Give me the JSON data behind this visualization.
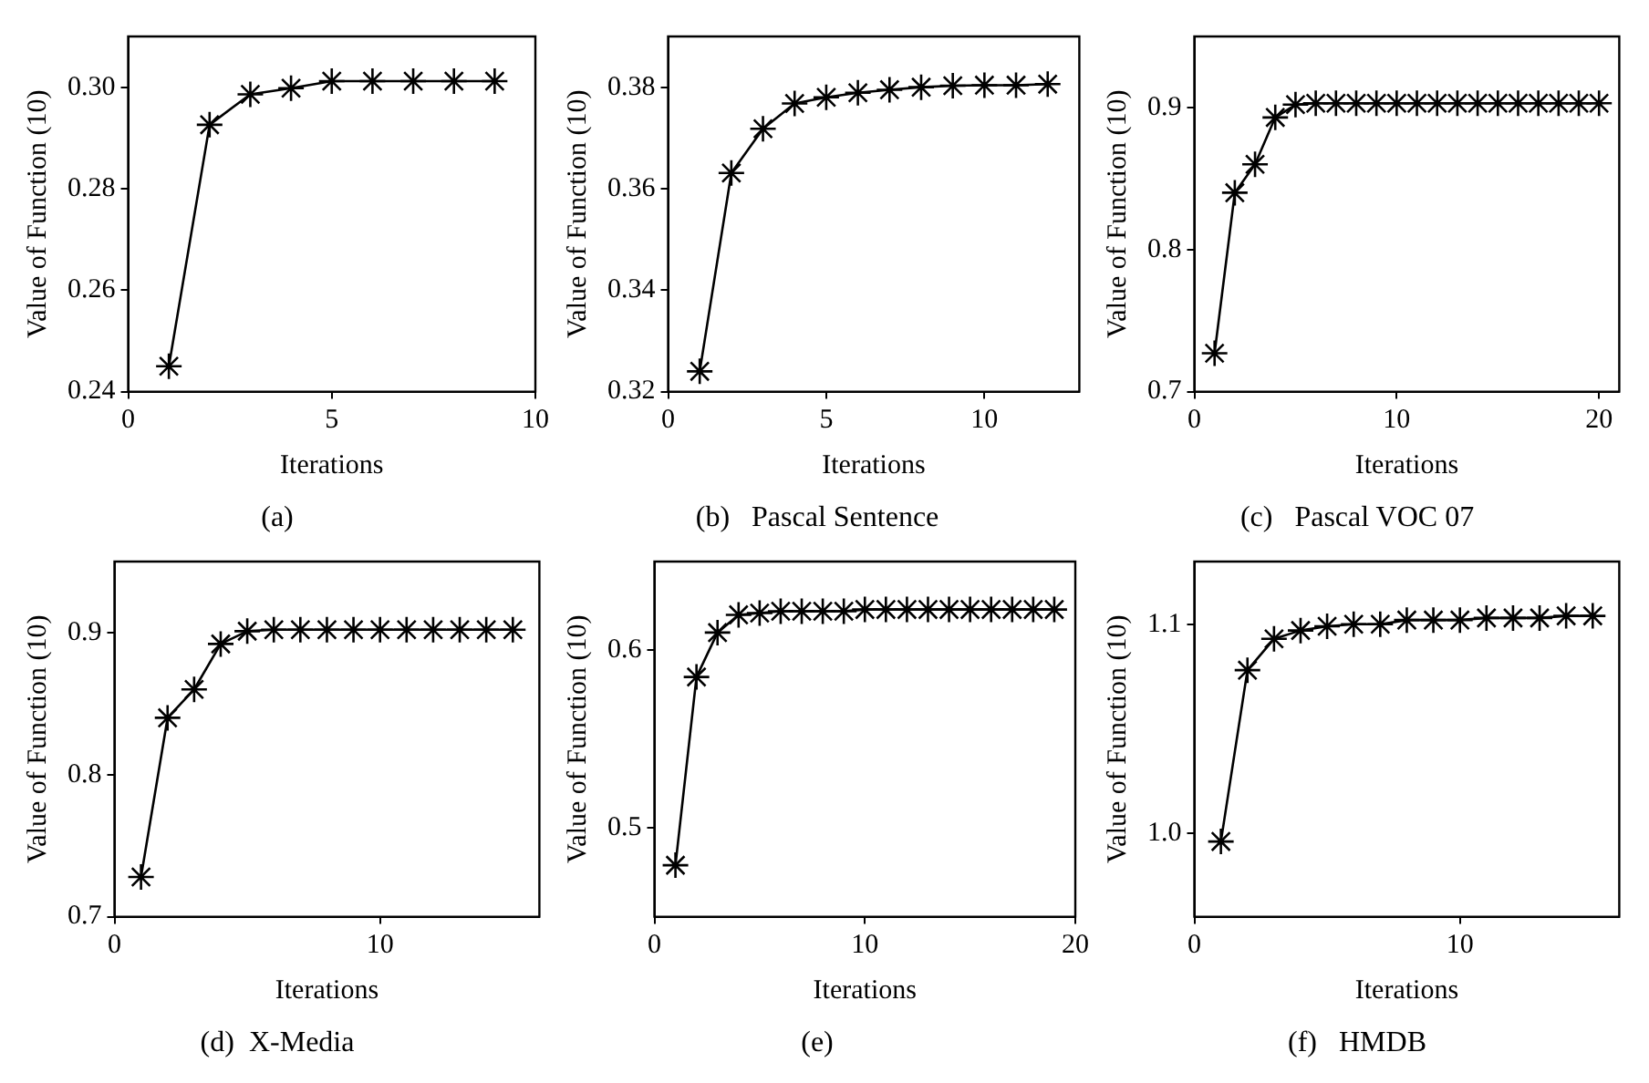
{
  "chart_data": [
    {
      "type": "line",
      "title": "(a)",
      "xlabel": "Iterations",
      "ylabel": "Value of Function (10)",
      "x": [
        1,
        2,
        3,
        4,
        5,
        6,
        7,
        8,
        9
      ],
      "values": [
        0.245,
        0.2926,
        0.2986,
        0.2998,
        0.3012,
        0.3012,
        0.3012,
        0.3012,
        0.3012
      ],
      "color": "#000000",
      "xlim": [
        0,
        10
      ],
      "xticks": [
        0,
        5,
        10
      ],
      "ylim": [
        0.24,
        0.31
      ],
      "yticks": [
        0.24,
        0.26,
        0.28,
        {
          "value": 0.3,
          "label": "0.30"
        }
      ],
      "marker": "cross",
      "grid": false,
      "legend": false
    },
    {
      "type": "line",
      "title": "(b)   Pascal Sentence",
      "xlabel": "Iterations",
      "ylabel": "Value of Function (10)",
      "x": [
        1,
        2,
        3,
        4,
        5,
        6,
        7,
        8,
        9,
        10,
        11,
        12
      ],
      "values": [
        0.324,
        0.3631,
        0.3718,
        0.3768,
        0.378,
        0.3789,
        0.3795,
        0.38,
        0.3803,
        0.3804,
        0.3804,
        0.3806
      ],
      "color": "#000000",
      "xlim": [
        0,
        13
      ],
      "xticks": [
        0,
        5,
        10
      ],
      "ylim": [
        0.32,
        0.39
      ],
      "yticks": [
        0.32,
        0.34,
        0.36,
        0.38
      ],
      "marker": "cross",
      "grid": false,
      "legend": false
    },
    {
      "type": "line",
      "title": "(c)   Pascal VOC 07",
      "xlabel": "Iterations",
      "ylabel": "Value of Function (10)",
      "x": [
        1,
        2,
        3,
        4,
        5,
        6,
        7,
        8,
        9,
        10,
        11,
        12,
        13,
        14,
        15,
        16,
        17,
        18,
        19,
        20
      ],
      "values": [
        0.727,
        0.84,
        0.86,
        0.893,
        0.902,
        0.903,
        0.903,
        0.903,
        0.903,
        0.903,
        0.903,
        0.903,
        0.903,
        0.903,
        0.903,
        0.903,
        0.903,
        0.903,
        0.903,
        0.903
      ],
      "color": "#000000",
      "xlim": [
        0,
        21
      ],
      "xticks": [
        0,
        10,
        20
      ],
      "ylim": [
        0.7,
        0.95
      ],
      "yticks": [
        0.7,
        0.8,
        0.9
      ],
      "marker": "cross",
      "grid": false,
      "legend": false
    },
    {
      "type": "line",
      "title": "(d)  X-Media",
      "xlabel": "Iterations",
      "ylabel": "Value of Function (10)",
      "x": [
        1,
        2,
        3,
        4,
        5,
        6,
        7,
        8,
        9,
        10,
        11,
        12,
        13,
        14,
        15
      ],
      "values": [
        0.728,
        0.84,
        0.86,
        0.892,
        0.901,
        0.902,
        0.902,
        0.902,
        0.902,
        0.902,
        0.902,
        0.902,
        0.902,
        0.902,
        0.902
      ],
      "color": "#000000",
      "xlim": [
        0,
        16
      ],
      "xticks": [
        0,
        10
      ],
      "ylim": [
        0.7,
        0.95
      ],
      "yticks": [
        0.7,
        0.8,
        0.9
      ],
      "marker": "cross",
      "grid": false,
      "legend": false
    },
    {
      "type": "line",
      "title": "(e)",
      "xlabel": "Iterations",
      "ylabel": "Value of Function (10)",
      "x": [
        1,
        2,
        3,
        4,
        5,
        6,
        7,
        8,
        9,
        10,
        11,
        12,
        13,
        14,
        15,
        16,
        17,
        18,
        19
      ],
      "values": [
        0.479,
        0.585,
        0.61,
        0.62,
        0.621,
        0.622,
        0.622,
        0.622,
        0.622,
        0.623,
        0.623,
        0.623,
        0.623,
        0.623,
        0.623,
        0.623,
        0.623,
        0.623,
        0.623
      ],
      "color": "#000000",
      "xlim": [
        0,
        20
      ],
      "xticks": [
        0,
        10,
        20
      ],
      "ylim": [
        0.45,
        0.65
      ],
      "yticks": [
        0.5,
        0.6
      ],
      "marker": "cross",
      "grid": false,
      "legend": false
    },
    {
      "type": "line",
      "title": "(f)   HMDB",
      "xlabel": "Iterations",
      "ylabel": "Value of Function (10)",
      "x": [
        1,
        2,
        3,
        4,
        5,
        6,
        7,
        8,
        9,
        10,
        11,
        12,
        13,
        14,
        15
      ],
      "values": [
        0.996,
        1.078,
        1.093,
        1.097,
        1.099,
        1.1,
        1.1,
        1.102,
        1.102,
        1.102,
        1.103,
        1.103,
        1.103,
        1.104,
        1.104
      ],
      "color": "#000000",
      "xlim": [
        0,
        16
      ],
      "xticks": [
        0,
        10
      ],
      "ylim": [
        0.96,
        1.13
      ],
      "yticks": [
        {
          "value": 1.0,
          "label": "1.0"
        },
        1.1
      ],
      "marker": "cross",
      "grid": false,
      "legend": false
    }
  ]
}
